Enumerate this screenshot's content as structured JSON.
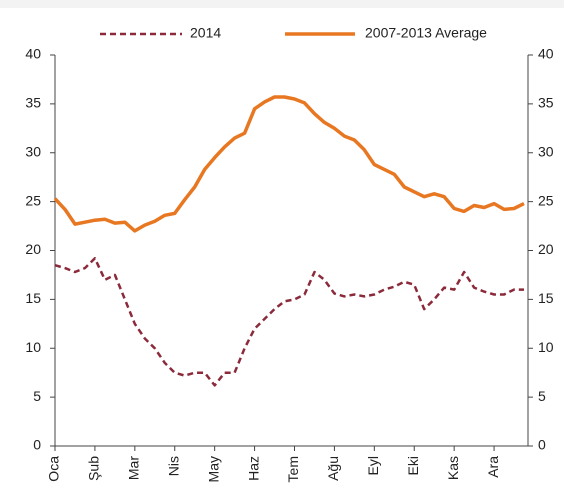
{
  "chart_data": {
    "type": "line",
    "x": [
      0,
      0.25,
      0.5,
      0.75,
      1,
      1.25,
      1.5,
      1.75,
      2,
      2.25,
      2.5,
      2.75,
      3,
      3.25,
      3.5,
      3.75,
      4,
      4.25,
      4.5,
      4.75,
      5,
      5.25,
      5.5,
      5.75,
      6,
      6.25,
      6.5,
      6.75,
      7,
      7.25,
      7.5,
      7.75,
      8,
      8.25,
      8.5,
      8.75,
      9,
      9.25,
      9.5,
      9.75,
      10,
      10.25,
      10.5,
      10.75,
      11,
      11.25,
      11.5,
      11.75
    ],
    "series": [
      {
        "name": "2014",
        "color": "#8b2a3a",
        "dashed": true,
        "values": [
          18.5,
          18.2,
          17.8,
          18.2,
          19.2,
          17,
          17.5,
          15,
          12.5,
          11,
          10,
          8.5,
          7.5,
          7.2,
          7.5,
          7.5,
          6.2,
          7.5,
          7.5,
          10,
          12,
          13,
          14,
          14.8,
          15,
          15.5,
          17.8,
          17,
          15.6,
          15.3,
          15.5,
          15.3,
          15.5,
          16,
          16.3,
          16.8,
          16.5,
          14,
          15,
          16.2,
          16,
          17.8,
          16.2,
          15.8,
          15.5,
          15.5,
          16,
          16
        ]
      },
      {
        "name": "2007-2013 Average",
        "color": "#e87722",
        "dashed": false,
        "values": [
          25.3,
          24.2,
          22.7,
          22.9,
          23.1,
          23.2,
          22.8,
          22.9,
          22,
          22.6,
          23,
          23.6,
          23.8,
          25.2,
          26.5,
          28.3,
          29.5,
          30.6,
          31.5,
          32,
          34.5,
          35.2,
          35.7,
          35.7,
          35.5,
          35.1,
          34,
          33.1,
          32.5,
          31.7,
          31.3,
          30.3,
          28.8,
          28.3,
          27.8,
          26.5,
          26,
          25.5,
          25.8,
          25.5,
          24.3,
          24,
          24.6,
          24.4,
          24.8,
          24.2,
          24.3,
          24.8
        ]
      }
    ],
    "xlim": [
      0,
      11.85
    ],
    "xticks": [
      {
        "value": 0,
        "label": "Oca"
      },
      {
        "value": 1,
        "label": "Şub"
      },
      {
        "value": 2,
        "label": "Mar"
      },
      {
        "value": 3,
        "label": "Nis"
      },
      {
        "value": 4,
        "label": "May"
      },
      {
        "value": 5,
        "label": "Haz"
      },
      {
        "value": 6,
        "label": "Tem"
      },
      {
        "value": 7,
        "label": "Ağu"
      },
      {
        "value": 8,
        "label": "Eyl"
      },
      {
        "value": 9,
        "label": "Eki"
      },
      {
        "value": 10,
        "label": "Kas"
      },
      {
        "value": 11,
        "label": "Ara"
      }
    ],
    "ylim": [
      0,
      40
    ],
    "yticks": [
      0,
      5,
      10,
      15,
      20,
      25,
      30,
      35,
      40
    ],
    "y2lim": [
      0,
      40
    ],
    "y2ticks": [
      0,
      5,
      10,
      15,
      20,
      25,
      30,
      35,
      40
    ],
    "grid": false
  }
}
